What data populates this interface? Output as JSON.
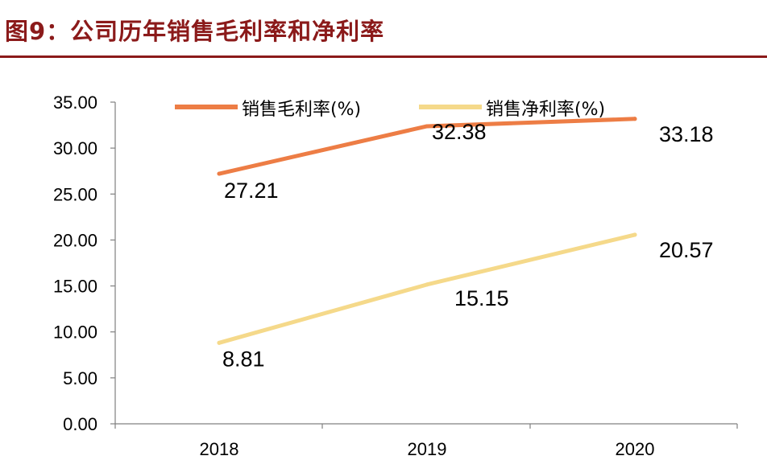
{
  "header": {
    "title": "图9：公司历年销售毛利率和净利率"
  },
  "chart_data": {
    "type": "line",
    "title": "图9：公司历年销售毛利率和净利率",
    "xlabel": "",
    "ylabel": "",
    "categories": [
      "2018",
      "2019",
      "2020"
    ],
    "ylim": [
      0,
      35
    ],
    "yticks": [
      "0.00",
      "5.00",
      "10.00",
      "15.00",
      "20.00",
      "25.00",
      "30.00",
      "35.00"
    ],
    "grid": false,
    "legend_position": "top",
    "series": [
      {
        "name": "销售毛利率(%)",
        "color": "#ed7d45",
        "values": [
          27.21,
          32.38,
          33.18
        ],
        "labels": [
          "27.21",
          "32.38",
          "33.18"
        ]
      },
      {
        "name": "销售净利率(%)",
        "color": "#f5d98a",
        "values": [
          8.81,
          15.15,
          20.57
        ],
        "labels": [
          "8.81",
          "15.15",
          "20.57"
        ]
      }
    ]
  }
}
